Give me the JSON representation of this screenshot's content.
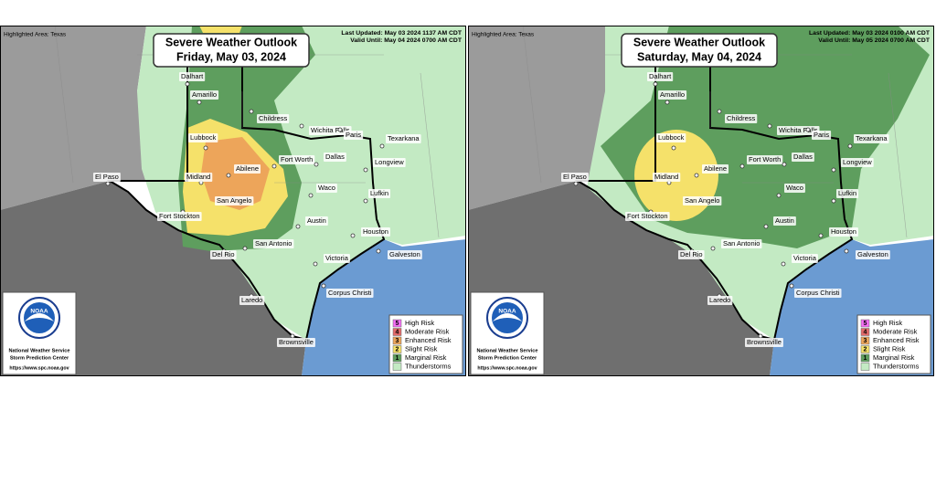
{
  "highlighted_area": "Highlighted Area: Texas",
  "outlook_title": "Severe Weather Outlook",
  "panels": [
    {
      "date": "Friday, May 03, 2024",
      "last_updated": "Last Updated: May 03 2024 1137 AM CDT",
      "valid_until": "Valid Until: May 04 2024 0700 AM CDT"
    },
    {
      "date": "Saturday, May 04, 2024",
      "last_updated": "Last Updated: May 03 2024 0100 AM CDT",
      "valid_until": "Valid Until: May 05 2024 0700 AM CDT"
    }
  ],
  "cities": [
    "Dalhart",
    "Amarillo",
    "Childress",
    "Wichita Falls",
    "Lubbock",
    "Paris",
    "Texarkana",
    "Fort Worth",
    "Dallas",
    "Longview",
    "Abilene",
    "El Paso",
    "Midland",
    "San Angelo",
    "Waco",
    "Lufkin",
    "Fort Stockton",
    "Austin",
    "Houston",
    "San Antonio",
    "Del Rio",
    "Victoria",
    "Galveston",
    "Corpus Christi",
    "Laredo",
    "Brownsville"
  ],
  "legend": [
    {
      "level": 5,
      "label": "High Risk",
      "color": "#f56ef5"
    },
    {
      "level": 4,
      "label": "Moderate Risk",
      "color": "#e36a6a"
    },
    {
      "level": 3,
      "label": "Enhanced Risk",
      "color": "#eda55a"
    },
    {
      "level": 2,
      "label": "Slight Risk",
      "color": "#f5e16a"
    },
    {
      "level": 1,
      "label": "Marginal Risk",
      "color": "#5e9e5e"
    },
    {
      "label": "Thunderstorms",
      "color": "#c3eac3"
    }
  ],
  "noaa": {
    "logo": "NOAA",
    "org": "National Weather Service",
    "center": "Storm Prediction Center",
    "url": "https://www.spc.noaa.gov"
  }
}
